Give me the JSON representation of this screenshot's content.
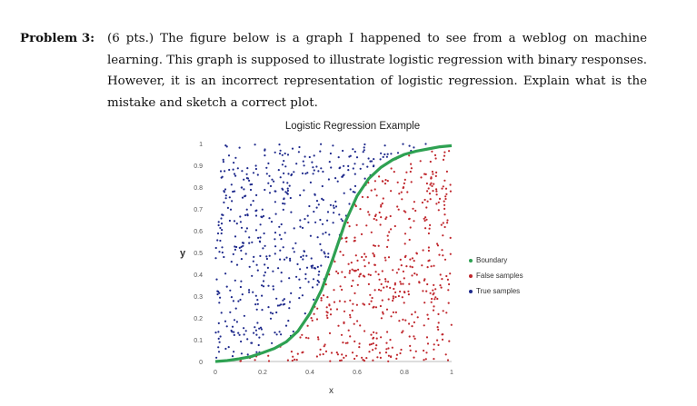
{
  "problem": {
    "label": "Problem 3:",
    "text": "(6 pts.) The figure below is a graph I happened to see from a weblog on machine learning. This graph is supposed to illustrate logistic regression with binary responses. However, it is an incorrect representation of logistic regression. Explain what is the mistake and sketch a correct plot."
  },
  "chart_data": {
    "type": "scatter",
    "title": "Logistic Regression Example",
    "xlabel": "x",
    "ylabel": "y",
    "xlim": [
      0,
      1
    ],
    "ylim": [
      0,
      1
    ],
    "x_ticks": [
      "0",
      "0.2",
      "0.4",
      "0.6",
      "0.8",
      "1"
    ],
    "y_ticks": [
      "0",
      "0.1",
      "0.2",
      "0.3",
      "0.4",
      "0.5",
      "0.6",
      "0.7",
      "0.8",
      "0.9",
      "1"
    ],
    "legend_position": "right",
    "grid": false,
    "series": [
      {
        "name": "Boundary",
        "kind": "line",
        "color": "#2ea152",
        "x": [
          0,
          0.05,
          0.1,
          0.15,
          0.2,
          0.25,
          0.3,
          0.35,
          0.4,
          0.45,
          0.5,
          0.55,
          0.6,
          0.65,
          0.7,
          0.75,
          0.8,
          0.85,
          0.9,
          0.95,
          1.0
        ],
        "y": [
          0.0,
          0.004,
          0.012,
          0.022,
          0.04,
          0.06,
          0.09,
          0.14,
          0.22,
          0.33,
          0.48,
          0.64,
          0.76,
          0.84,
          0.89,
          0.925,
          0.95,
          0.965,
          0.975,
          0.985,
          0.99
        ]
      },
      {
        "name": "False samples",
        "kind": "points",
        "color": "#c0272d",
        "region": "below boundary",
        "approx_count": 500
      },
      {
        "name": "True samples",
        "kind": "points",
        "color": "#1f2a8c",
        "region": "above boundary",
        "approx_count": 500
      }
    ]
  }
}
